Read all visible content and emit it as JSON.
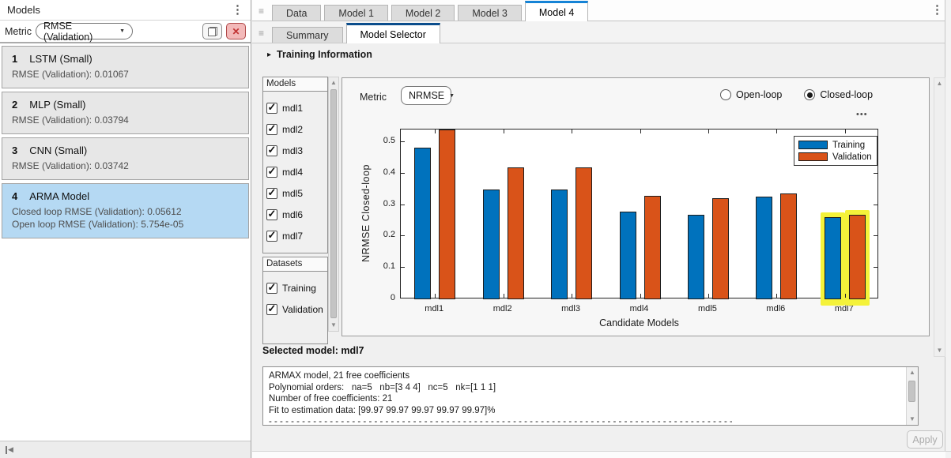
{
  "icons": {
    "kebab_glyph": "⋮",
    "grip_glyph": "≡",
    "caret_glyph": "▼",
    "up_glyph": "▲",
    "down_glyph": "▼",
    "ellipsis_glyph": "•••",
    "check_glyph": "✓",
    "collapse_glyph": "◀",
    "close_glyph": "✕",
    "expander_glyph": "▸"
  },
  "left_panel": {
    "title": "Models",
    "metric_label": "Metric",
    "metric_dropdown": "RMSE (Validation)",
    "models": [
      {
        "index": "1",
        "name": "LSTM (Small)",
        "details": [
          "RMSE (Validation): 0.01067"
        ],
        "selected": false
      },
      {
        "index": "2",
        "name": "MLP (Small)",
        "details": [
          "RMSE (Validation): 0.03794"
        ],
        "selected": false
      },
      {
        "index": "3",
        "name": "CNN (Small)",
        "details": [
          "RMSE (Validation): 0.03742"
        ],
        "selected": false
      },
      {
        "index": "4",
        "name": "ARMA Model",
        "details": [
          "Closed loop RMSE (Validation): 0.05612",
          "Open loop RMSE (Validation): 5.754e-05"
        ],
        "selected": true
      }
    ]
  },
  "tab_strip": {
    "document_tabs": [
      {
        "label": "Data",
        "active": false
      },
      {
        "label": "Model 1",
        "active": false
      },
      {
        "label": "Model 2",
        "active": false
      },
      {
        "label": "Model 3",
        "active": false
      },
      {
        "label": "Model 4",
        "active": true
      }
    ],
    "sub_tabs": [
      {
        "label": "Summary",
        "active": false
      },
      {
        "label": "Model Selector",
        "active": true
      }
    ]
  },
  "training_info": {
    "label": "Training Information",
    "collapsed": true
  },
  "filters": {
    "models_header": "Models",
    "model_checkboxes": [
      {
        "label": "mdl1",
        "checked": true
      },
      {
        "label": "mdl2",
        "checked": true
      },
      {
        "label": "mdl3",
        "checked": true
      },
      {
        "label": "mdl4",
        "checked": true
      },
      {
        "label": "mdl5",
        "checked": true
      },
      {
        "label": "mdl6",
        "checked": true
      },
      {
        "label": "mdl7",
        "checked": true
      }
    ],
    "datasets_header": "Datasets",
    "dataset_checkboxes": [
      {
        "label": "Training",
        "checked": true
      },
      {
        "label": "Validation",
        "checked": true
      }
    ]
  },
  "chart_panel": {
    "metric_label": "Metric",
    "metric_dropdown": "NRMSE",
    "loop_radios": [
      {
        "label": "Open-loop",
        "selected": false
      },
      {
        "label": "Closed-loop",
        "selected": true
      }
    ]
  },
  "chart_data": {
    "type": "bar",
    "categories": [
      "mdl1",
      "mdl2",
      "mdl3",
      "mdl4",
      "mdl5",
      "mdl6",
      "mdl7"
    ],
    "series": [
      {
        "name": "Training",
        "color": "#0072BD",
        "values": [
          0.483,
          0.35,
          0.35,
          0.28,
          0.27,
          0.327,
          0.26
        ]
      },
      {
        "name": "Validation",
        "color": "#D95319",
        "values": [
          0.55,
          0.42,
          0.42,
          0.33,
          0.322,
          0.337,
          0.27
        ]
      }
    ],
    "title": "",
    "xlabel": "Candidate Models",
    "ylabel": "NRMSE Closed-loop",
    "ylim": [
      0,
      0.54
    ],
    "yticks": [
      0,
      0.1,
      0.2,
      0.3,
      0.4,
      0.5
    ],
    "legend_position": "top-right",
    "grid": false,
    "highlighted_category": "mdl7",
    "highlight_color": "#f4f23a",
    "note": "mdl1 Validation bar is clipped at the top of the axes"
  },
  "selection": {
    "selected_model_label": "Selected model: mdl7"
  },
  "model_report": {
    "lines": [
      "ARMAX model, 21 free coefficients",
      "Polynomial orders:   na=5   nb=[3 4 4]   nc=5   nk=[1 1 1]",
      "Number of free coefficients: 21",
      "Fit to estimation data: [99.97 99.97 99.97 99.97 99.97]%",
      "- - - - - - - - - - - - - - - - - - - - - - - - - - - - - - - - - - - - - - - - - - - - - - - - - - - - - - - - - - - - - - - - - - - - - - - - - - - - - - - - - - - - - - - - - - - - - - - -"
    ]
  },
  "apply_button_label": "Apply"
}
